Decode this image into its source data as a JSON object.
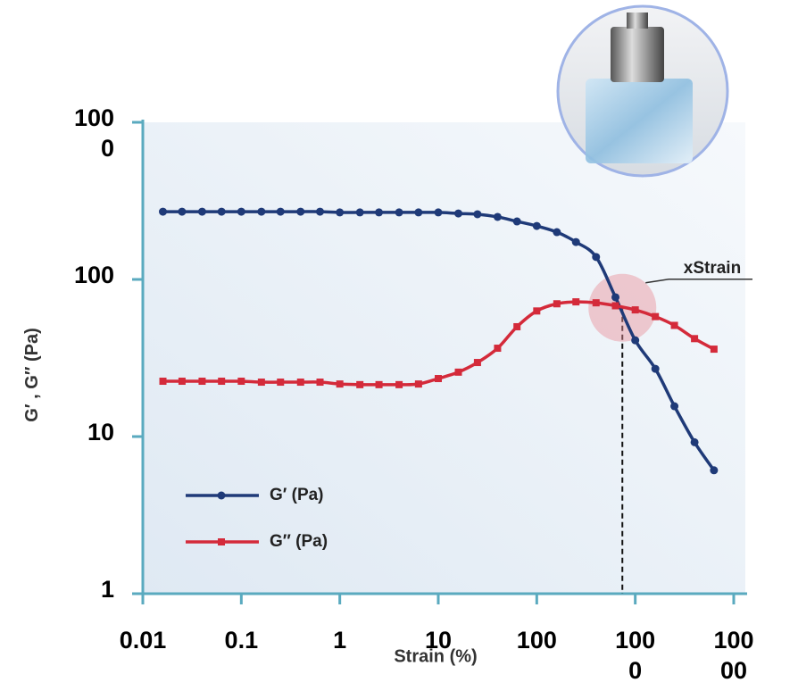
{
  "chart_data": {
    "type": "line",
    "y_label": "G′ , G″ (Pa)",
    "x_label": "Strain (%)",
    "x": [
      0.016,
      0.025,
      0.04,
      0.063,
      0.1,
      0.16,
      0.25,
      0.4,
      0.63,
      1,
      1.6,
      2.5,
      4,
      6.3,
      10,
      16,
      25,
      40,
      63,
      100,
      160,
      250,
      400,
      630,
      1000,
      1600,
      2500,
      4000,
      6300
    ],
    "series": [
      {
        "name": "G′ (Pa)",
        "color": "#1f3a78",
        "marker": "circle",
        "values": [
          270,
          270,
          270,
          270,
          270,
          270,
          270,
          270,
          270,
          267,
          267,
          267,
          267,
          267,
          267,
          263,
          260,
          250,
          234,
          219,
          200,
          173,
          139,
          77,
          41,
          27,
          15.6,
          9.2,
          6.1
        ]
      },
      {
        "name": "G″ (Pa)",
        "color": "#d42a3a",
        "marker": "square",
        "values": [
          22.5,
          22.5,
          22.5,
          22.5,
          22.5,
          22.2,
          22.2,
          22.2,
          22.2,
          21.6,
          21.4,
          21.4,
          21.4,
          21.6,
          23.4,
          25.7,
          29.6,
          36.5,
          50,
          63,
          70,
          72,
          71,
          68,
          64,
          58,
          51,
          42,
          36
        ]
      }
    ],
    "xscale": "log",
    "yscale": "log",
    "xlim": [
      0.01,
      10000
    ],
    "ylim": [
      1,
      1000
    ],
    "xticks": [
      0.01,
      0.1,
      1,
      10,
      100,
      1000,
      10000
    ],
    "yticks": [
      1,
      10,
      100,
      1000
    ],
    "annotation": {
      "text": "xStrain",
      "x": 740,
      "y": 66
    },
    "legend": "lower left"
  }
}
